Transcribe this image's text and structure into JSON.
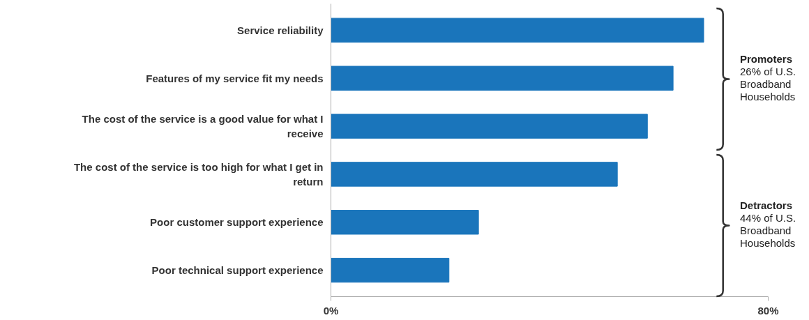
{
  "chart_data": {
    "type": "bar",
    "orientation": "horizontal",
    "categories": [
      "Service reliability",
      "Features of my service fit my needs",
      "The cost of the service is a good value for what I receive",
      "The cost of the service is too high for what I get in return",
      "Poor customer support experience",
      "Poor technical support experience"
    ],
    "values": [
      68.2,
      62.6,
      57.9,
      52.4,
      27.0,
      21.6
    ],
    "color": "#1a75bb",
    "xlim": [
      0,
      80
    ],
    "xticks": [
      {
        "value": 0,
        "label": "0%"
      },
      {
        "value": 80,
        "label": "80%"
      }
    ],
    "annotations": [
      "Promoters",
      "26% of U.S. Broadband Households",
      "Detractors",
      "44% of U.S. Broadband Households"
    ]
  }
}
